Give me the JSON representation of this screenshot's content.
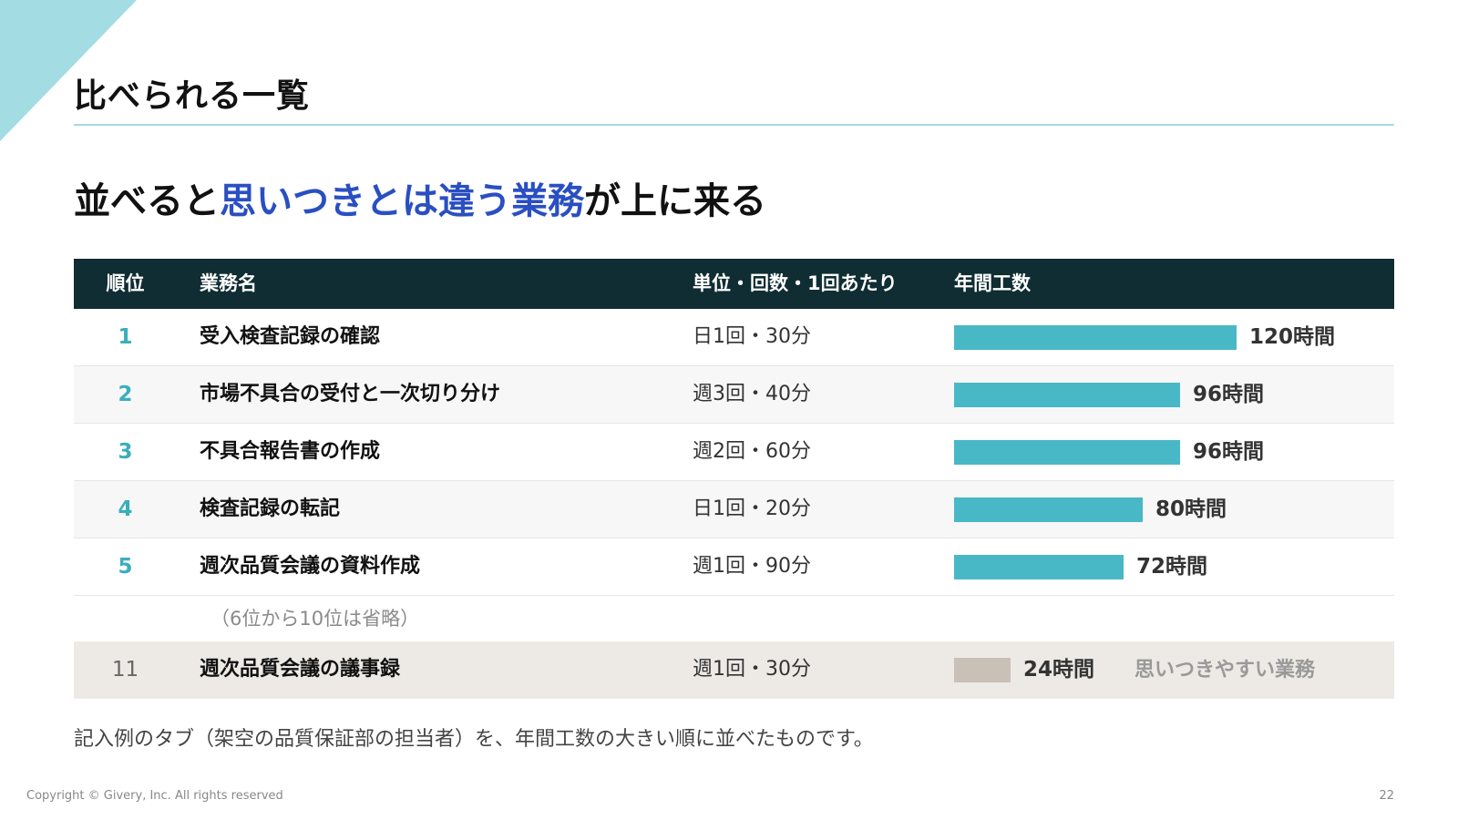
{
  "slide_title": "比べられる一覧",
  "headline": {
    "prefix": "並べると",
    "highlight": "思いつきとは違う業務",
    "suffix": "が上に来る"
  },
  "colors": {
    "accent": "#2a4fc2",
    "bar": "#48b8c6",
    "bar_muted": "#c9c0b8",
    "header_bg": "#0f2d33"
  },
  "table": {
    "headers": {
      "rank": "順位",
      "task": "業務名",
      "freq": "単位・回数・1回あたり",
      "annual": "年間工数"
    },
    "max_hours": 120,
    "rows": [
      {
        "rank": "1",
        "task": "受入検査記録の確認",
        "freq": "日1回・30分",
        "hours": 120,
        "annual": "120時間"
      },
      {
        "rank": "2",
        "task": "市場不具合の受付と一次切り分け",
        "freq": "週3回・40分",
        "hours": 96,
        "annual": "96時間"
      },
      {
        "rank": "3",
        "task": "不具合報告書の作成",
        "freq": "週2回・60分",
        "hours": 96,
        "annual": "96時間"
      },
      {
        "rank": "4",
        "task": "検査記録の転記",
        "freq": "日1回・20分",
        "hours": 80,
        "annual": "80時間"
      },
      {
        "rank": "5",
        "task": "週次品質会議の資料作成",
        "freq": "週1回・90分",
        "hours": 72,
        "annual": "72時間"
      }
    ],
    "omitted": "（6位から10位は省略）",
    "last_row": {
      "rank": "11",
      "task": "週次品質会議の議事録",
      "freq": "週1回・30分",
      "hours": 24,
      "annual": "24時間",
      "note": "思いつきやすい業務"
    }
  },
  "footnote": "記入例のタブ（架空の品質保証部の担当者）を、年間工数の大きい順に並べたものです。",
  "copyright": "Copyright © Givery, Inc. All rights reserved",
  "page_number": "22"
}
